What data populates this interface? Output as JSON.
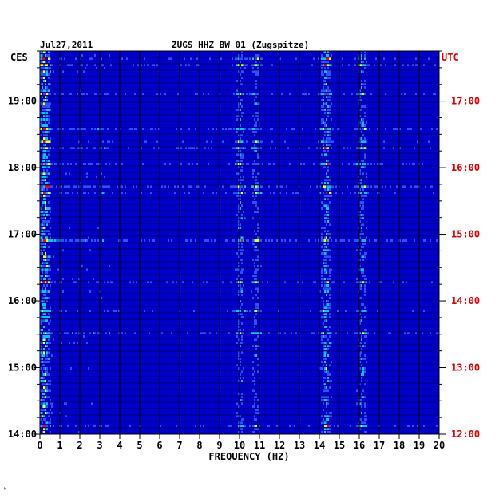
{
  "header": {
    "date": "Jul27,2011",
    "station": "ZUGS HHZ BW 01 (Zugspitze)"
  },
  "chart_data": {
    "type": "heatmap",
    "title": "ZUGS HHZ BW 01 (Zugspitze)",
    "date": "Jul27,2011",
    "xlabel": "FREQUENCY (HZ)",
    "left_axis_label": "CES",
    "right_axis_label": "UTC",
    "xlim": [
      0,
      20
    ],
    "x_ticks": [
      "0",
      "1",
      "2",
      "3",
      "4",
      "5",
      "6",
      "7",
      "8",
      "9",
      "10",
      "11",
      "12",
      "13",
      "14",
      "15",
      "16",
      "17",
      "18",
      "19",
      "20"
    ],
    "left_ticks": [
      "19:00",
      "18:00",
      "17:00",
      "16:00",
      "15:00",
      "14:00"
    ],
    "right_ticks": [
      "17:00",
      "16:00",
      "15:00",
      "14:00",
      "13:00",
      "12:00"
    ],
    "left_tick_hours": [
      19,
      18,
      17,
      16,
      15,
      14
    ],
    "time_range_ces_hours": [
      14,
      19.75
    ],
    "colors": {
      "background": "#0000c8",
      "axis": "#000000",
      "left_labels": "#000000",
      "right_labels": "#dd0000",
      "signal_low": "#00c8ff",
      "signal_mid": "#ffff00",
      "signal_high": "#ff0000"
    },
    "signal_bands_hz": [
      {
        "center": 0.2,
        "strength": 0.9
      },
      {
        "center": 10.0,
        "strength": 0.55
      },
      {
        "center": 10.8,
        "strength": 0.5
      },
      {
        "center": 14.3,
        "strength": 0.8
      },
      {
        "center": 16.1,
        "strength": 0.6
      }
    ]
  },
  "footer": {
    "mark": "ᴺ"
  }
}
